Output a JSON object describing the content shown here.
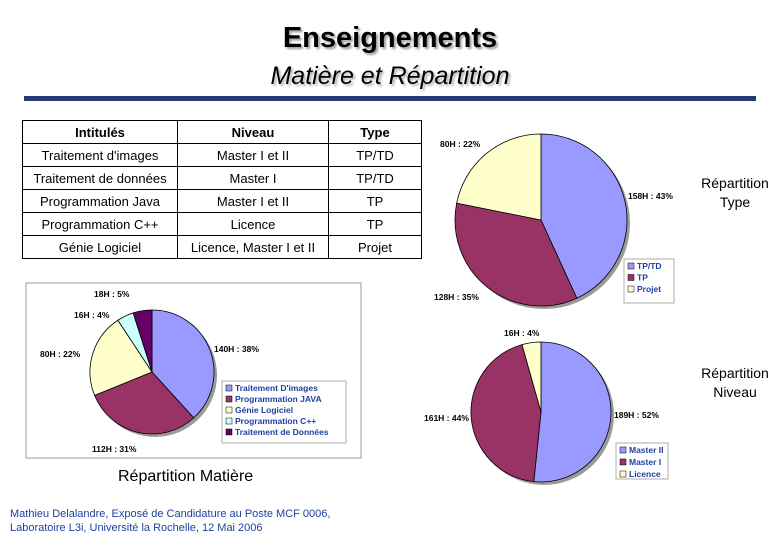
{
  "header": {
    "title": "Enseignements",
    "subtitle": "Matière et Répartition"
  },
  "table": {
    "headers": [
      "Intitulés",
      "Niveau",
      "Type"
    ],
    "rows": [
      [
        "Traitement d'images",
        "Master I et II",
        "TP/TD"
      ],
      [
        "Traitement de données",
        "Master I",
        "TP/TD"
      ],
      [
        "Programmation Java",
        "Master I et II",
        "TP"
      ],
      [
        "Programmation C++",
        "Licence",
        "TP"
      ],
      [
        "Génie Logiciel",
        "Licence, Master I et II",
        "Projet"
      ]
    ]
  },
  "chart_data": [
    {
      "type": "pie",
      "caption": "Répartition Matière",
      "categories": [
        "Traitement D'images",
        "Programmation JAVA",
        "Génie Logiciel",
        "Programmation C++",
        "Traitement de Données"
      ],
      "values": [
        140,
        112,
        80,
        16,
        18
      ],
      "labels": [
        "140H : 38%",
        "112H : 31%",
        "80H : 22%",
        "16H : 4%",
        "18H : 5%"
      ],
      "colors": [
        "#9999ff",
        "#993366",
        "#ffffcc",
        "#ccffff",
        "#660066"
      ],
      "legend": "right"
    },
    {
      "type": "pie",
      "caption_lines": [
        "Répartition",
        "Type"
      ],
      "categories": [
        "TP/TD",
        "TP",
        "Projet"
      ],
      "values": [
        158,
        128,
        80
      ],
      "labels": [
        "158H : 43%",
        "128H : 35%",
        "80H : 22%"
      ],
      "colors": [
        "#9999ff",
        "#993366",
        "#ffffcc"
      ],
      "legend": "bottom-right"
    },
    {
      "type": "pie",
      "caption_lines": [
        "Répartition",
        "Niveau"
      ],
      "categories": [
        "Master II",
        "Master I",
        "Licence"
      ],
      "values": [
        189,
        161,
        16
      ],
      "labels": [
        "189H : 52%",
        "161H : 44%",
        "16H : 4%"
      ],
      "colors": [
        "#9999ff",
        "#993366",
        "#ffffcc"
      ],
      "legend": "bottom-right"
    }
  ],
  "footer": {
    "line1": "Mathieu Delalandre, Exposé de Candidature au Poste MCF 0006,",
    "line2": "Laboratoire L3i, Université la Rochelle, 12 Mai 2006"
  }
}
